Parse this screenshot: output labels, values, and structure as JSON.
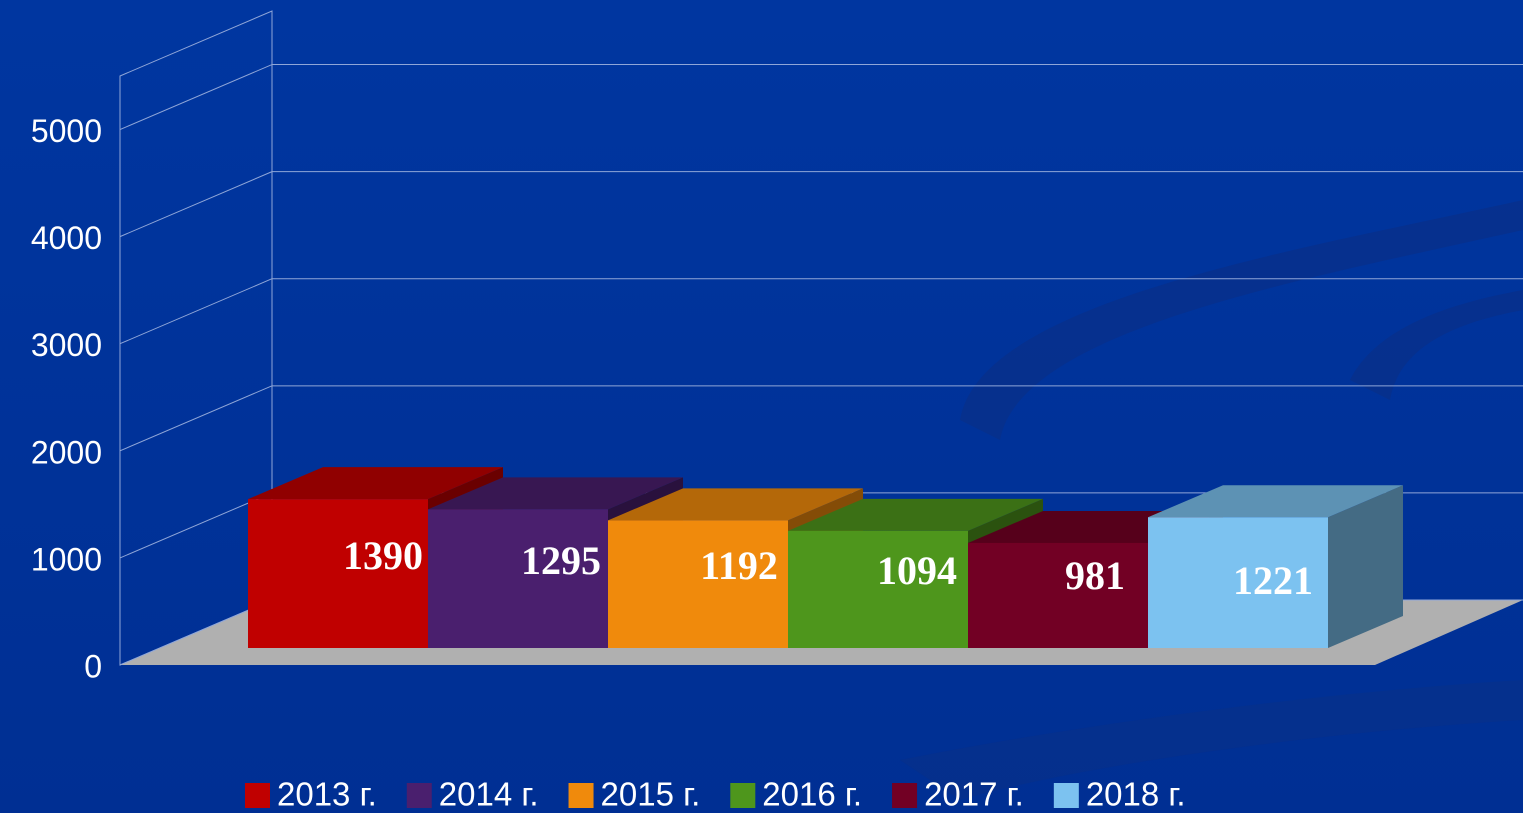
{
  "chart_data": {
    "type": "bar3d",
    "series": [
      {
        "name": "2013 г.",
        "color": "#c00000",
        "values": [
          1390
        ]
      },
      {
        "name": "2014 г.",
        "color": "#4a1f6e",
        "values": [
          1295
        ]
      },
      {
        "name": "2015 г.",
        "color": "#f08a0c",
        "values": [
          1192
        ]
      },
      {
        "name": "2016 г.",
        "color": "#4e961c",
        "values": [
          1094
        ]
      },
      {
        "name": "2017 г.",
        "color": "#720024",
        "values": [
          981
        ]
      },
      {
        "name": "2018 г.",
        "color": "#7cc2f0",
        "values": [
          1221
        ]
      }
    ],
    "ylim": [
      0,
      5500
    ],
    "yticks": [
      0,
      1000,
      2000,
      3000,
      4000,
      5000
    ],
    "grid": true,
    "legend": "bottom"
  }
}
